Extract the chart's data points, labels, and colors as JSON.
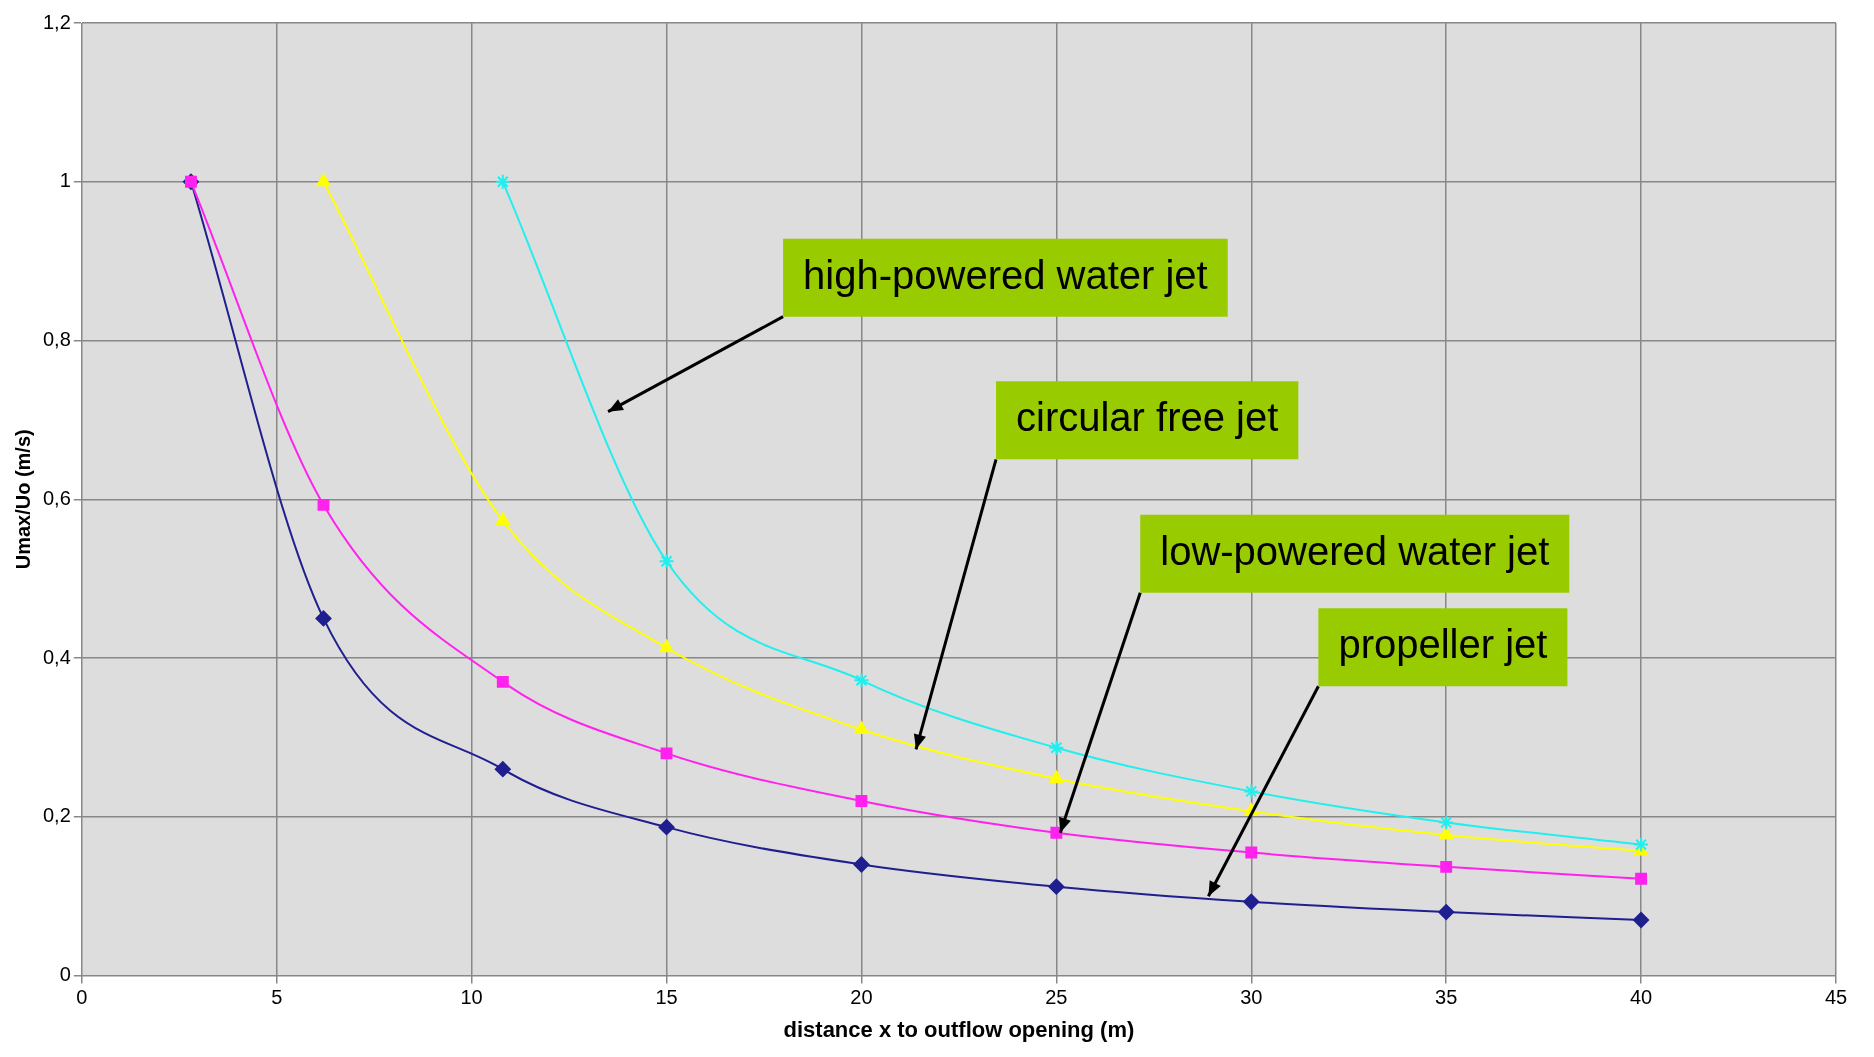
{
  "chart_data": {
    "type": "line",
    "xlabel": "distance x to outflow opening (m)",
    "ylabel": "Umax/Uo (m/s)",
    "xlim": [
      0,
      45
    ],
    "xticks": [
      0,
      5,
      10,
      15,
      20,
      25,
      30,
      35,
      40,
      45
    ],
    "ylim": [
      0,
      1.2
    ],
    "yticks": [
      0,
      {
        "value": 0.2,
        "label": "0,2"
      },
      {
        "value": 0.4,
        "label": "0,4"
      },
      {
        "value": 0.6,
        "label": "0,6"
      },
      {
        "value": 0.8,
        "label": "0,8"
      },
      1,
      {
        "value": 1.2,
        "label": "1,2"
      }
    ],
    "grid": true,
    "legend": false,
    "series": [
      {
        "color": "#1f1f8f",
        "marker": "diamond",
        "x": [
          2.8,
          6.2,
          10.8,
          15,
          20,
          25,
          30,
          35,
          40
        ],
        "values": [
          1,
          0.45,
          0.26,
          0.187,
          0.14,
          0.112,
          0.093,
          0.08,
          0.07
        ]
      },
      {
        "color": "#ff22ee",
        "marker": "square",
        "x": [
          2.8,
          6.2,
          10.8,
          15,
          20,
          25,
          30,
          35,
          40
        ],
        "values": [
          1,
          0.593,
          0.37,
          0.28,
          0.22,
          0.18,
          0.155,
          0.137,
          0.122
        ]
      },
      {
        "color": "#ffff00",
        "marker": "triangle",
        "x": [
          6.2,
          10.8,
          15,
          20,
          25,
          30,
          35,
          40
        ],
        "values": [
          1,
          0.573,
          0.413,
          0.31,
          0.248,
          0.207,
          0.177,
          0.157
        ]
      },
      {
        "color": "#22eeee",
        "marker": "cross",
        "x": [
          10.8,
          15,
          20,
          25,
          30,
          35,
          40
        ],
        "values": [
          1,
          0.522,
          0.372,
          0.287,
          0.232,
          0.193,
          0.165
        ]
      }
    ],
    "annotations": [
      "high-powered water jet",
      {
        "text": "circular free jet",
        "x": 21.4,
        "y": 0.285
      },
      {
        "text": "low-powered water jet",
        "x": 25.1,
        "y": 0.18
      },
      {
        "text": "propeller jet",
        "x": 28.9,
        "y": 0.1
      }
    ]
  }
}
